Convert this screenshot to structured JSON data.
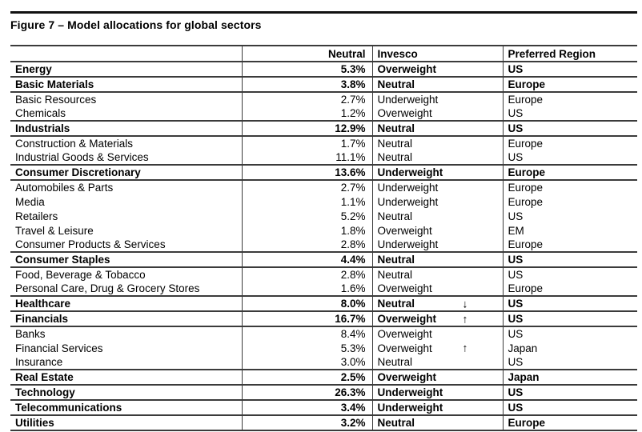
{
  "figure": {
    "title": "Figure 7 – Model allocations for global sectors"
  },
  "colors": {
    "background": "#ffffff",
    "text": "#000000",
    "table_border": "#3b3b3b",
    "top_rule": "#111111"
  },
  "table": {
    "columns": [
      {
        "label": ""
      },
      {
        "label": "Neutral"
      },
      {
        "label": "Invesco"
      },
      {
        "label": "Preferred Region"
      }
    ],
    "rows": [
      {
        "sector": "Energy",
        "neutral": "5.3%",
        "invesco": "Overweight",
        "arrow": "",
        "region": "US",
        "group": true
      },
      {
        "sector": "Basic Materials",
        "neutral": "3.8%",
        "invesco": "Neutral",
        "arrow": "",
        "region": "Europe",
        "group": true
      },
      {
        "sector": "Basic Resources",
        "neutral": "2.7%",
        "invesco": "Underweight",
        "arrow": "",
        "region": "Europe",
        "group": false
      },
      {
        "sector": "Chemicals",
        "neutral": "1.2%",
        "invesco": "Overweight",
        "arrow": "",
        "region": "US",
        "group": false
      },
      {
        "sector": "Industrials",
        "neutral": "12.9%",
        "invesco": "Neutral",
        "arrow": "",
        "region": "US",
        "group": true
      },
      {
        "sector": "Construction & Materials",
        "neutral": "1.7%",
        "invesco": "Neutral",
        "arrow": "",
        "region": "Europe",
        "group": false
      },
      {
        "sector": "Industrial Goods & Services",
        "neutral": "11.1%",
        "invesco": "Neutral",
        "arrow": "",
        "region": "US",
        "group": false
      },
      {
        "sector": "Consumer Discretionary",
        "neutral": "13.6%",
        "invesco": "Underweight",
        "arrow": "",
        "region": "Europe",
        "group": true
      },
      {
        "sector": "Automobiles & Parts",
        "neutral": "2.7%",
        "invesco": "Underweight",
        "arrow": "",
        "region": "Europe",
        "group": false
      },
      {
        "sector": "Media",
        "neutral": "1.1%",
        "invesco": "Underweight",
        "arrow": "",
        "region": "Europe",
        "group": false
      },
      {
        "sector": "Retailers",
        "neutral": "5.2%",
        "invesco": "Neutral",
        "arrow": "",
        "region": "US",
        "group": false
      },
      {
        "sector": "Travel & Leisure",
        "neutral": "1.8%",
        "invesco": "Overweight",
        "arrow": "",
        "region": "EM",
        "group": false
      },
      {
        "sector": "Consumer Products & Services",
        "neutral": "2.8%",
        "invesco": "Underweight",
        "arrow": "",
        "region": "Europe",
        "group": false
      },
      {
        "sector": "Consumer Staples",
        "neutral": "4.4%",
        "invesco": "Neutral",
        "arrow": "",
        "region": "US",
        "group": true
      },
      {
        "sector": "Food, Beverage & Tobacco",
        "neutral": "2.8%",
        "invesco": "Neutral",
        "arrow": "",
        "region": "US",
        "group": false
      },
      {
        "sector": "Personal Care, Drug & Grocery Stores",
        "neutral": "1.6%",
        "invesco": "Overweight",
        "arrow": "",
        "region": "Europe",
        "group": false
      },
      {
        "sector": "Healthcare",
        "neutral": "8.0%",
        "invesco": "Neutral",
        "arrow": "↓",
        "region": "US",
        "group": true
      },
      {
        "sector": "Financials",
        "neutral": "16.7%",
        "invesco": "Overweight",
        "arrow": "↑",
        "region": "US",
        "group": true
      },
      {
        "sector": "Banks",
        "neutral": "8.4%",
        "invesco": "Overweight",
        "arrow": "",
        "region": "US",
        "group": false
      },
      {
        "sector": "Financial Services",
        "neutral": "5.3%",
        "invesco": "Overweight",
        "arrow": "↑",
        "region": "Japan",
        "group": false
      },
      {
        "sector": "Insurance",
        "neutral": "3.0%",
        "invesco": "Neutral",
        "arrow": "",
        "region": "US",
        "group": false
      },
      {
        "sector": "Real Estate",
        "neutral": "2.5%",
        "invesco": "Overweight",
        "arrow": "",
        "region": "Japan",
        "group": true
      },
      {
        "sector": "Technology",
        "neutral": "26.3%",
        "invesco": "Underweight",
        "arrow": "",
        "region": "US",
        "group": true
      },
      {
        "sector": "Telecommunications",
        "neutral": "3.4%",
        "invesco": "Underweight",
        "arrow": "",
        "region": "US",
        "group": true
      },
      {
        "sector": "Utilities",
        "neutral": "3.2%",
        "invesco": "Neutral",
        "arrow": "",
        "region": "Europe",
        "group": true
      }
    ]
  }
}
